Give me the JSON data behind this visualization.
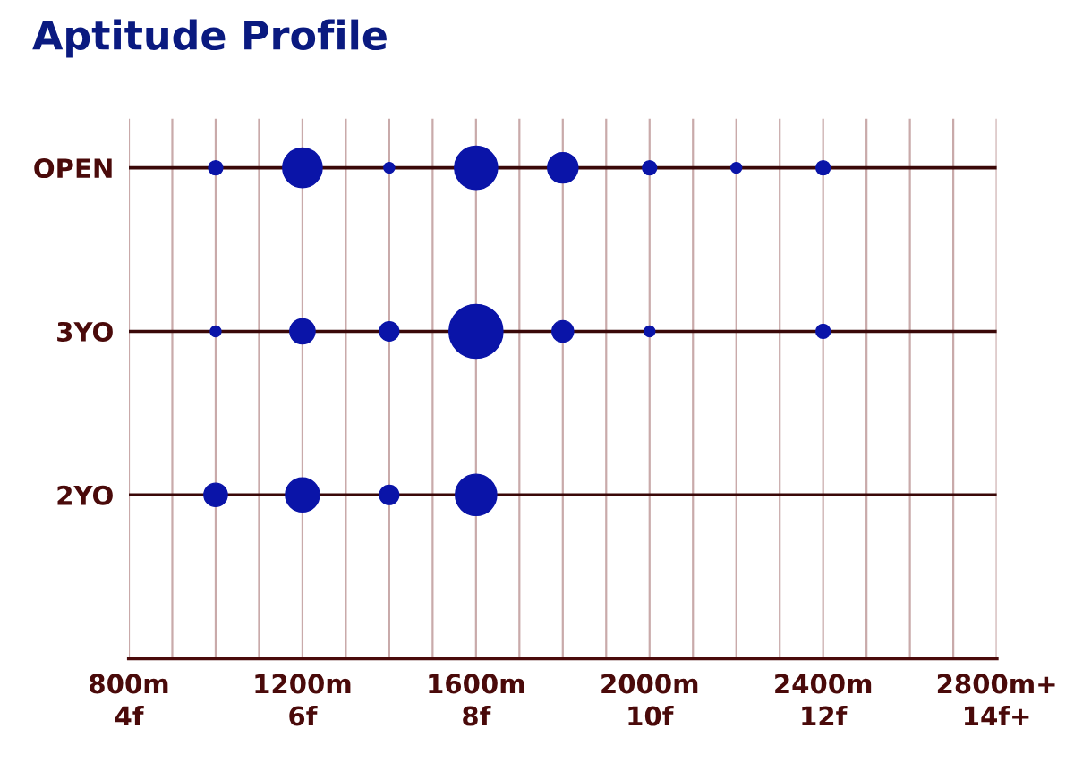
{
  "chart_data": {
    "type": "bubble",
    "title": "Aptitude Profile",
    "orientation": "horizontal",
    "categories": [
      "OPEN",
      "3YO",
      "2YO"
    ],
    "xlim": [
      800,
      2800
    ],
    "xticks": [
      {
        "value": 800,
        "label": "800m"
      },
      {
        "value": 900,
        "label": null
      },
      {
        "value": 1000,
        "label": null
      },
      {
        "value": 1100,
        "label": null
      },
      {
        "value": 1200,
        "label": "1200m"
      },
      {
        "value": 1300,
        "label": null
      },
      {
        "value": 1400,
        "label": null
      },
      {
        "value": 1500,
        "label": null
      },
      {
        "value": 1600,
        "label": "1600m"
      },
      {
        "value": 1700,
        "label": null
      },
      {
        "value": 1800,
        "label": null
      },
      {
        "value": 1900,
        "label": null
      },
      {
        "value": 2000,
        "label": "2000m"
      },
      {
        "value": 2100,
        "label": null
      },
      {
        "value": 2200,
        "label": null
      },
      {
        "value": 2300,
        "label": null
      },
      {
        "value": 2400,
        "label": "2400m"
      },
      {
        "value": 2500,
        "label": null
      },
      {
        "value": 2600,
        "label": null
      },
      {
        "value": 2700,
        "label": null
      },
      {
        "value": 2800,
        "label": "2800m+"
      }
    ],
    "x2lim": [
      4,
      14
    ],
    "x2ticks": [
      {
        "value": 4,
        "label": "4f"
      },
      {
        "value": 6,
        "label": "6f"
      },
      {
        "value": 8,
        "label": "8f"
      },
      {
        "value": 10,
        "label": "10f"
      },
      {
        "value": 12,
        "label": "12f"
      },
      {
        "value": 14,
        "label": "14f+"
      }
    ],
    "grid": true,
    "series": [
      {
        "color": "#0a14a8",
        "values": [
          1000,
          1000,
          1000
        ],
        "sizes": [
          0.07,
          0.04,
          0.19
        ]
      },
      {
        "color": "#0a14a8",
        "values": [
          1200,
          1200,
          1200
        ],
        "sizes": [
          0.54,
          0.22,
          0.4
        ]
      },
      {
        "color": "#0a14a8",
        "values": [
          1400,
          1400,
          1400
        ],
        "sizes": [
          0.04,
          0.13,
          0.13
        ]
      },
      {
        "color": "#0a14a8",
        "values": [
          1600,
          1600,
          1600
        ],
        "sizes": [
          0.64,
          1,
          0.59
        ]
      },
      {
        "color": "#0a14a8",
        "values": [
          1800,
          1800,
          null
        ],
        "sizes": [
          0.32,
          0.16,
          null
        ]
      },
      {
        "color": "#0a14a8",
        "values": [
          2000,
          2000,
          null
        ],
        "sizes": [
          0.07,
          0.04,
          null
        ]
      },
      {
        "color": "#0a14a8",
        "values": [
          2200,
          null,
          null
        ],
        "sizes": [
          0.04,
          null,
          null
        ]
      },
      {
        "color": "#0a14a8",
        "values": [
          2400,
          2400,
          null
        ],
        "sizes": [
          0.07,
          0.07,
          null
        ]
      }
    ]
  }
}
